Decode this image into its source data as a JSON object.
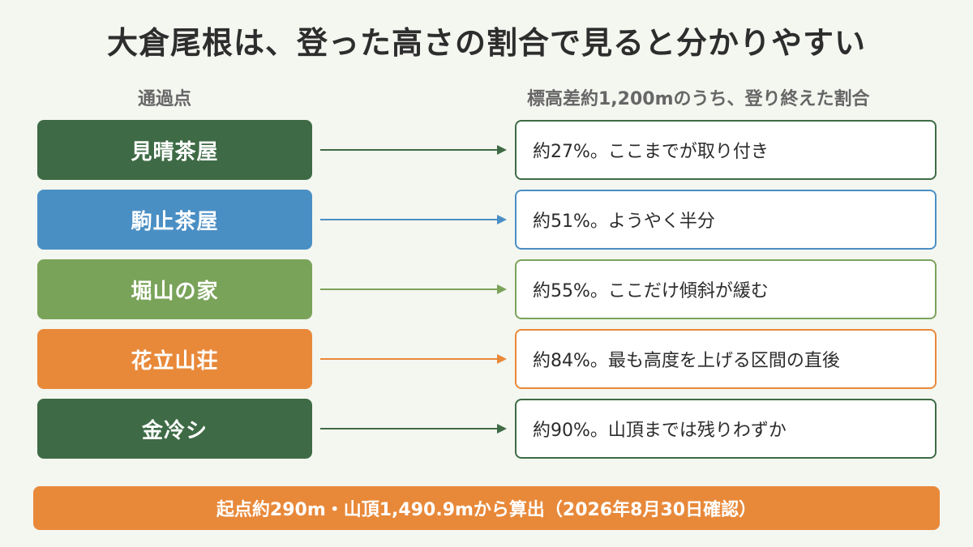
{
  "title": "大倉尾根は、登った高さの割合で見ると分かりやすい",
  "headers": {
    "left": "通過点",
    "right": "標高差約1,200mのうち、登り終えた割合"
  },
  "rows": [
    {
      "point": "見晴茶屋",
      "desc": "約27%。ここまでが取り付き",
      "color": "#3e6b45"
    },
    {
      "point": "駒止茶屋",
      "desc": "約51%。ようやく半分",
      "color": "#4a8fc4"
    },
    {
      "point": "堀山の家",
      "desc": "約55%。ここだけ傾斜が緩む",
      "color": "#7aa35a"
    },
    {
      "point": "花立山荘",
      "desc": "約84%。最も高度を上げる区間の直後",
      "color": "#e8893a"
    },
    {
      "point": "金冷シ",
      "desc": "約90%。山頂までは残りわずか",
      "color": "#3e6b45"
    }
  ],
  "footer": {
    "text": "起点約290m・山頂1,490.9mから算出（2026年8月30日確認）",
    "color": "#e8893a"
  }
}
